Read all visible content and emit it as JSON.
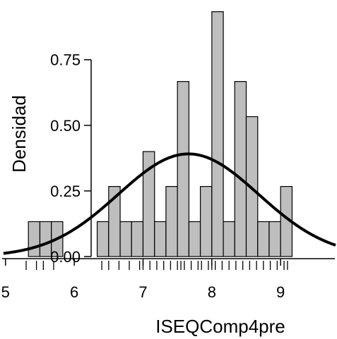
{
  "chart_data": {
    "type": "bar",
    "subtype": "histogram-with-density-curve",
    "xlabel": "ISEQComp4pre",
    "ylabel": "Densidad",
    "xlim": [
      4.92,
      9.82
    ],
    "ylim": [
      0,
      0.94
    ],
    "x_ticks": [
      5,
      6,
      7,
      8,
      9
    ],
    "x_tick_labels": [
      "5",
      "6",
      "7",
      "8",
      "9"
    ],
    "y_ticks": [
      0.0,
      0.25,
      0.5,
      0.75
    ],
    "y_tick_labels": [
      "0.00",
      "0.25",
      "0.50",
      "0.75"
    ],
    "bin_width": 0.167,
    "bins": [
      {
        "start": 5.333,
        "end": 5.5,
        "density": 0.133
      },
      {
        "start": 5.5,
        "end": 5.667,
        "density": 0.133
      },
      {
        "start": 5.667,
        "end": 5.833,
        "density": 0.133
      },
      {
        "start": 6.333,
        "end": 6.5,
        "density": 0.133
      },
      {
        "start": 6.5,
        "end": 6.667,
        "density": 0.267
      },
      {
        "start": 6.667,
        "end": 6.833,
        "density": 0.133
      },
      {
        "start": 6.833,
        "end": 7.0,
        "density": 0.133
      },
      {
        "start": 7.0,
        "end": 7.167,
        "density": 0.4
      },
      {
        "start": 7.167,
        "end": 7.333,
        "density": 0.133
      },
      {
        "start": 7.333,
        "end": 7.5,
        "density": 0.267
      },
      {
        "start": 7.5,
        "end": 7.667,
        "density": 0.667
      },
      {
        "start": 7.667,
        "end": 7.833,
        "density": 0.133
      },
      {
        "start": 7.833,
        "end": 8.0,
        "density": 0.267
      },
      {
        "start": 8.0,
        "end": 8.167,
        "density": 0.933
      },
      {
        "start": 8.167,
        "end": 8.333,
        "density": 0.133
      },
      {
        "start": 8.333,
        "end": 8.5,
        "density": 0.667
      },
      {
        "start": 8.5,
        "end": 8.667,
        "density": 0.533
      },
      {
        "start": 8.667,
        "end": 8.833,
        "density": 0.133
      },
      {
        "start": 8.833,
        "end": 9.0,
        "density": 0.133
      },
      {
        "start": 9.0,
        "end": 9.167,
        "density": 0.267
      }
    ],
    "density_curve": {
      "distribution": "normal",
      "mean": 7.66,
      "sd": 1.02
    },
    "rug": [
      5.3,
      5.45,
      5.55,
      5.7,
      6.4,
      6.5,
      6.65,
      6.8,
      6.95,
      7.0,
      7.1,
      7.2,
      7.3,
      7.4,
      7.5,
      7.55,
      7.6,
      7.7,
      7.8,
      7.85,
      7.95,
      8.0,
      8.05,
      8.15,
      8.25,
      8.35,
      8.45,
      8.55,
      8.65,
      8.75,
      8.85,
      8.95,
      9.05,
      9.1
    ],
    "colors": {
      "bar_fill": "#bebebe",
      "bar_stroke": "#000000",
      "curve": "#000000"
    },
    "grid": false
  }
}
